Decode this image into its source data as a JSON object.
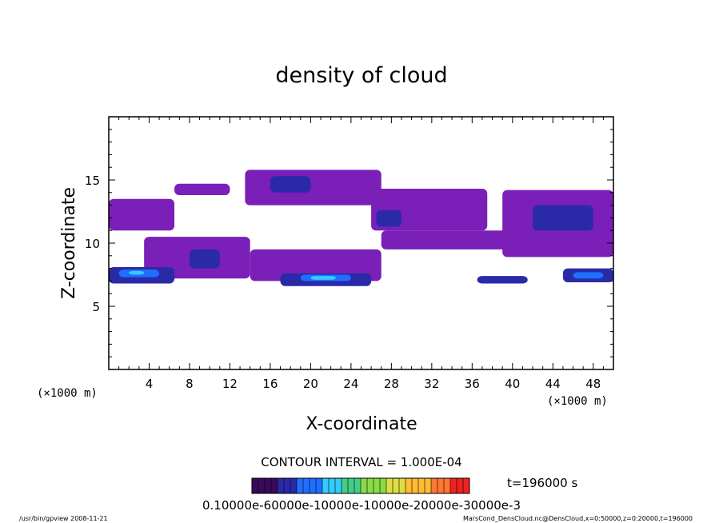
{
  "chart_data": {
    "type": "heatmap",
    "title": "density of cloud",
    "xlabel": "X-coordinate",
    "ylabel": "Z-coordinate",
    "xunit": "(×1000 m)",
    "yunit": "(×1000 m)",
    "xlim": [
      0,
      50
    ],
    "ylim": [
      0,
      20
    ],
    "xticks": [
      "4",
      "8",
      "12",
      "16",
      "20",
      "24",
      "28",
      "32",
      "36",
      "40",
      "44",
      "48"
    ],
    "yticks": [
      "5",
      "10",
      "15"
    ],
    "contour_interval": "CONTOUR INTERVAL = 1.000E-04",
    "time_label": "t=196000 s",
    "colorbar_label": "0.10000e-60000e-10000e-10000e-20000e-30000e-3",
    "colors": {
      "low": "#7a1fb8",
      "mid": "#2a2aa8",
      "high": "#1f6fff",
      "peak": "#33ccff"
    },
    "regions": [
      {
        "x": [
          13.5,
          27.0
        ],
        "z": [
          13.0,
          15.8
        ],
        "level": "low"
      },
      {
        "x": [
          6.5,
          12.0
        ],
        "z": [
          13.8,
          14.7
        ],
        "level": "low"
      },
      {
        "x": [
          26.0,
          37.5
        ],
        "z": [
          11.0,
          14.3
        ],
        "level": "low"
      },
      {
        "x": [
          0.0,
          6.5
        ],
        "z": [
          11.0,
          13.5
        ],
        "level": "low"
      },
      {
        "x": [
          39.0,
          50.0
        ],
        "z": [
          8.9,
          14.2
        ],
        "level": "low"
      },
      {
        "x": [
          27.0,
          40.0
        ],
        "z": [
          9.5,
          11.0
        ],
        "level": "low"
      },
      {
        "x": [
          3.5,
          14.0
        ],
        "z": [
          7.2,
          10.5
        ],
        "level": "low"
      },
      {
        "x": [
          14.0,
          27.0
        ],
        "z": [
          7.0,
          9.5
        ],
        "level": "low"
      },
      {
        "x": [
          0.0,
          6.5
        ],
        "z": [
          6.8,
          8.1
        ],
        "level": "mid"
      },
      {
        "x": [
          17.0,
          26.0
        ],
        "z": [
          6.6,
          7.6
        ],
        "level": "mid"
      },
      {
        "x": [
          36.5,
          41.5
        ],
        "z": [
          6.8,
          7.4
        ],
        "level": "mid"
      },
      {
        "x": [
          45.0,
          50.0
        ],
        "z": [
          6.9,
          8.0
        ],
        "level": "mid"
      },
      {
        "x": [
          8.0,
          11.0
        ],
        "z": [
          8.0,
          9.5
        ],
        "level": "mid"
      },
      {
        "x": [
          16.0,
          20.0
        ],
        "z": [
          14.0,
          15.3
        ],
        "level": "mid"
      },
      {
        "x": [
          42.0,
          48.0
        ],
        "z": [
          11.0,
          13.0
        ],
        "level": "mid"
      },
      {
        "x": [
          26.5,
          29.0
        ],
        "z": [
          11.3,
          12.6
        ],
        "level": "mid"
      },
      {
        "x": [
          1.0,
          5.0
        ],
        "z": [
          7.3,
          7.9
        ],
        "level": "high"
      },
      {
        "x": [
          19.0,
          24.0
        ],
        "z": [
          7.0,
          7.5
        ],
        "level": "high"
      },
      {
        "x": [
          46.0,
          49.0
        ],
        "z": [
          7.2,
          7.7
        ],
        "level": "high"
      },
      {
        "x": [
          2.0,
          3.5
        ],
        "z": [
          7.5,
          7.8
        ],
        "level": "peak"
      },
      {
        "x": [
          20.0,
          22.5
        ],
        "z": [
          7.1,
          7.4
        ],
        "level": "peak"
      }
    ]
  },
  "footer": {
    "left": "/usr/bin/gpview   2008-11-21",
    "right": "MarsCond_DensCloud.nc@DensCloud,x=0:50000,z=0:20000,t=196000"
  }
}
